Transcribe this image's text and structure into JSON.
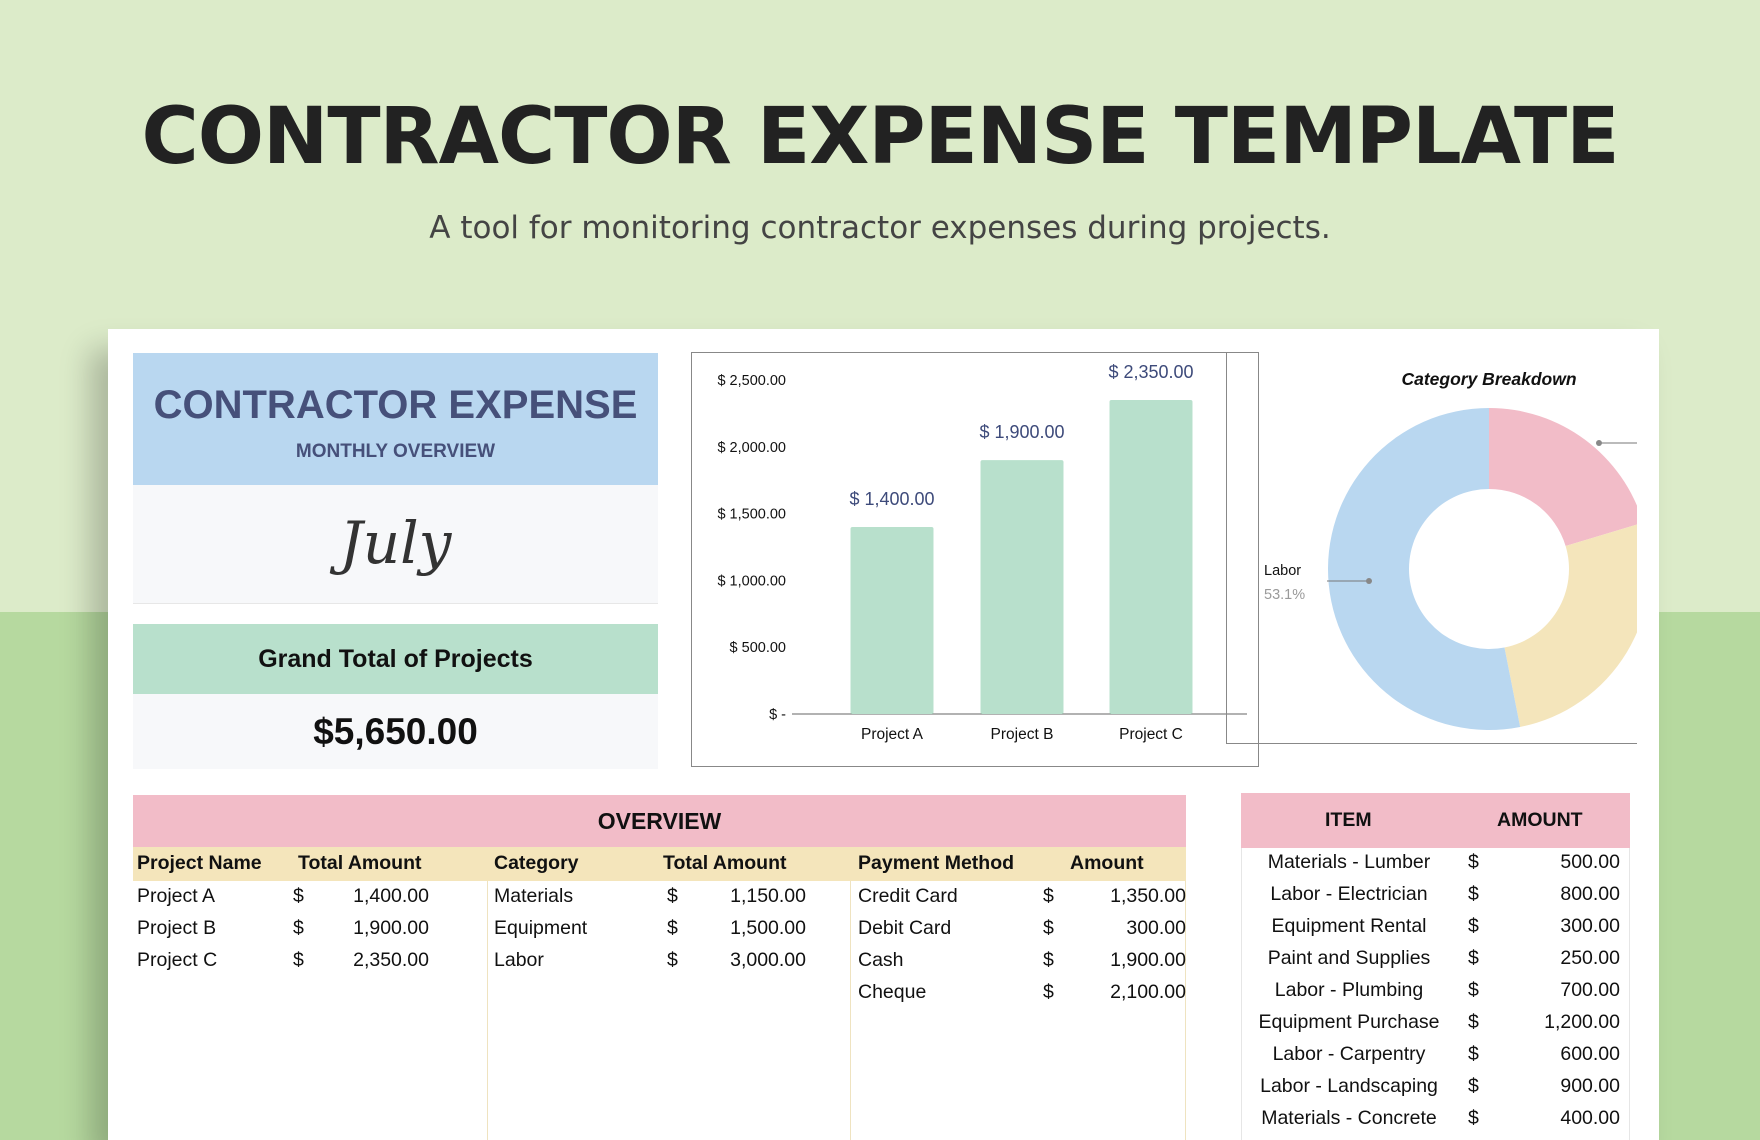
{
  "hero": {
    "title": "CONTRACTOR EXPENSE TEMPLATE",
    "subtitle": "A tool for monitoring contractor expenses during projects."
  },
  "summary": {
    "title": "CONTRACTOR EXPENSE",
    "subtitle": "MONTHLY OVERVIEW",
    "month": "July",
    "grand_total_label": "Grand Total of Projects",
    "grand_total_value": "$5,650.00"
  },
  "colors": {
    "bar": "#b8e0cc",
    "pie_labor": "#b9d7f0",
    "pie_materials": "#f2bcc8",
    "pie_equipment": "#f4e5bb"
  },
  "chart_data": [
    {
      "type": "bar",
      "categories": [
        "Project A",
        "Project B",
        "Project C"
      ],
      "values": [
        1400,
        1900,
        2350
      ],
      "data_labels": [
        "$ 1,400.00",
        "$ 1,900.00",
        "$ 2,350.00"
      ],
      "ylim": [
        0,
        2500
      ],
      "yticks": [
        0,
        500,
        1000,
        1500,
        2000,
        2500
      ],
      "ytick_labels": [
        "$ -",
        "$ 500.00",
        "$ 1,000.00",
        "$ 1,500.00",
        "$ 2,000.00",
        "$ 2,500.00"
      ],
      "grid": false
    },
    {
      "type": "pie",
      "title": "Category Breakdown",
      "categories": [
        "Materials",
        "Equipment",
        "Labor"
      ],
      "values": [
        1150,
        1500,
        3000
      ],
      "visible_label": "Labor",
      "visible_pct": "53.1%",
      "donut": true
    }
  ],
  "overview": {
    "heading": "OVERVIEW",
    "columns": [
      "Project Name",
      "Total Amount",
      "Category",
      "Total Amount",
      "Payment Method",
      "Amount"
    ],
    "currency": "$",
    "projects": [
      {
        "name": "Project A",
        "amount": "1,400.00"
      },
      {
        "name": "Project B",
        "amount": "1,900.00"
      },
      {
        "name": "Project C",
        "amount": "2,350.00"
      }
    ],
    "categories": [
      {
        "name": "Materials",
        "amount": "1,150.00"
      },
      {
        "name": "Equipment",
        "amount": "1,500.00"
      },
      {
        "name": "Labor",
        "amount": "3,000.00"
      }
    ],
    "payments": [
      {
        "name": "Credit Card",
        "amount": "1,350.00"
      },
      {
        "name": "Debit Card",
        "amount": "300.00"
      },
      {
        "name": "Cash",
        "amount": "1,900.00"
      },
      {
        "name": "Cheque",
        "amount": "2,100.00"
      }
    ]
  },
  "items": {
    "headers": [
      "ITEM",
      "AMOUNT"
    ],
    "currency": "$",
    "rows": [
      {
        "item": "Materials - Lumber",
        "amount": "500.00"
      },
      {
        "item": "Labor - Electrician",
        "amount": "800.00"
      },
      {
        "item": "Equipment Rental",
        "amount": "300.00"
      },
      {
        "item": "Paint and Supplies",
        "amount": "250.00"
      },
      {
        "item": "Labor - Plumbing",
        "amount": "700.00"
      },
      {
        "item": "Equipment Purchase",
        "amount": "1,200.00"
      },
      {
        "item": "Labor - Carpentry",
        "amount": "600.00"
      },
      {
        "item": "Labor - Landscaping",
        "amount": "900.00"
      },
      {
        "item": "Materials - Concrete",
        "amount": "400.00"
      }
    ]
  }
}
